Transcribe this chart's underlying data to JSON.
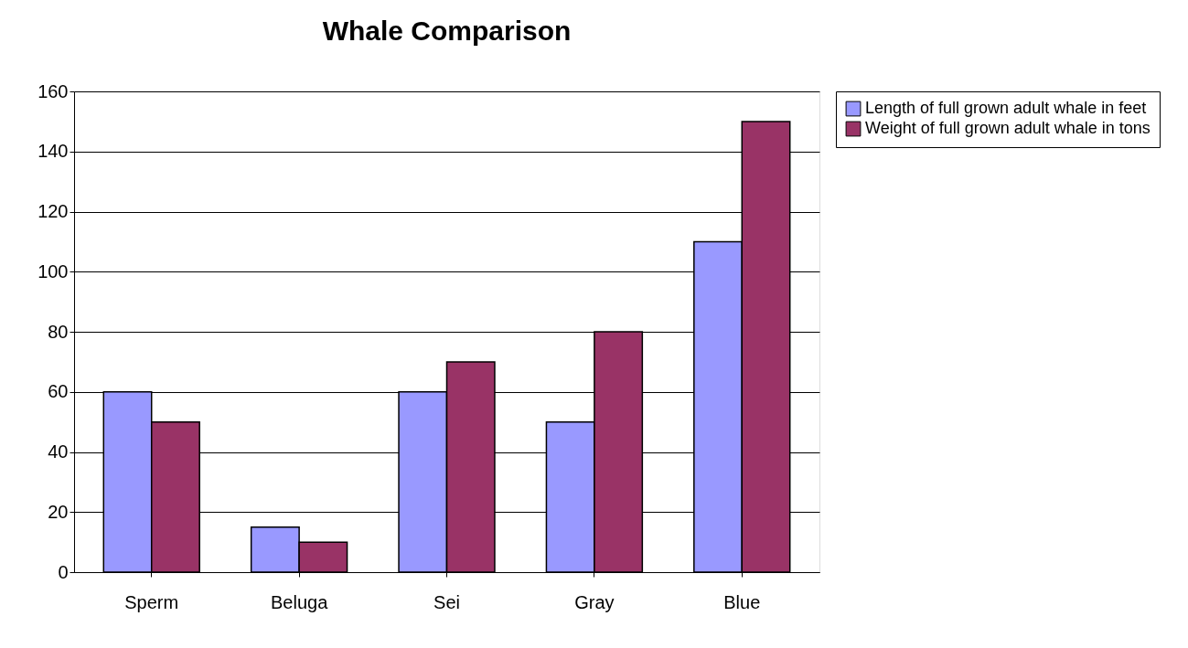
{
  "chart_data": {
    "type": "bar",
    "title": "Whale Comparison",
    "categories": [
      "Sperm",
      "Beluga",
      "Sei",
      "Gray",
      "Blue"
    ],
    "series": [
      {
        "name": "Length of full grown adult whale in feet",
        "color": "#9999ff",
        "values": [
          60,
          15,
          60,
          50,
          110
        ]
      },
      {
        "name": "Weight of full grown adult whale in tons",
        "color": "#993366",
        "values": [
          50,
          10,
          70,
          80,
          150
        ]
      }
    ],
    "ylim": [
      0,
      160
    ],
    "yticks": [
      0,
      20,
      40,
      60,
      80,
      100,
      120,
      140,
      160
    ],
    "grid": "y",
    "legend": "right"
  }
}
